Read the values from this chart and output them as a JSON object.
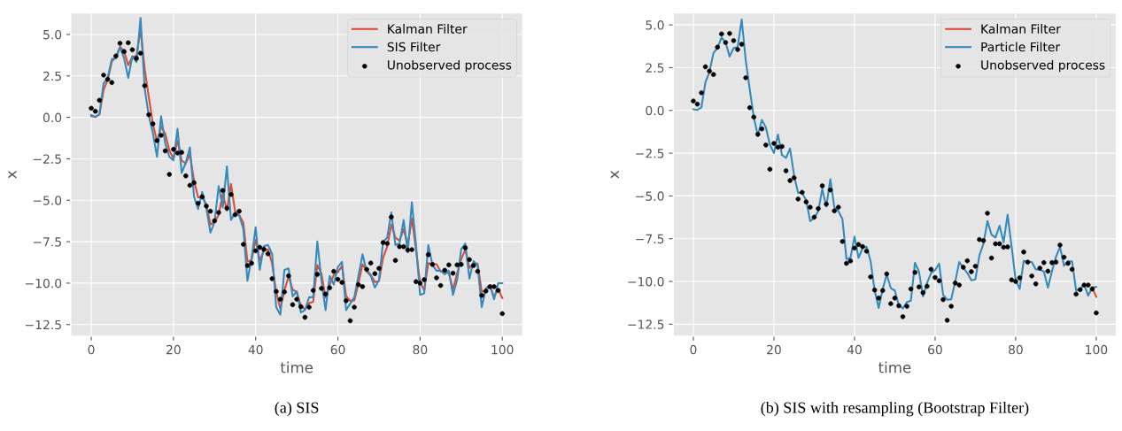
{
  "chart_data": [
    {
      "type": "line",
      "title": "(a) SIS",
      "xlabel": "time",
      "ylabel": "x",
      "xlim": [
        -5,
        105
      ],
      "ylim": [
        -13.2,
        6.3
      ],
      "xticks": [
        0,
        20,
        40,
        60,
        80,
        100
      ],
      "yticks": [
        {
          "value": 5,
          "label": "5.0"
        },
        {
          "value": 2.5,
          "label": "2.5"
        },
        {
          "value": 0,
          "label": "0.0"
        },
        {
          "value": -2.5,
          "label": "−2.5"
        },
        {
          "value": -5,
          "label": "−5.0"
        },
        {
          "value": -7.5,
          "label": "−7.5"
        },
        {
          "value": -10,
          "label": "−10.0"
        },
        {
          "value": -12.5,
          "label": "−12.5"
        }
      ],
      "grid": true,
      "legend": "top right",
      "x": [
        0,
        1,
        2,
        3,
        4,
        5,
        6,
        7,
        8,
        9,
        10,
        11,
        12,
        13,
        14,
        15,
        16,
        17,
        18,
        19,
        20,
        21,
        22,
        23,
        24,
        25,
        26,
        27,
        28,
        29,
        30,
        31,
        32,
        33,
        34,
        35,
        36,
        37,
        38,
        39,
        40,
        41,
        42,
        43,
        44,
        45,
        46,
        47,
        48,
        49,
        50,
        51,
        52,
        53,
        54,
        55,
        56,
        57,
        58,
        59,
        60,
        61,
        62,
        63,
        64,
        65,
        66,
        67,
        68,
        69,
        70,
        71,
        72,
        73,
        74,
        75,
        76,
        77,
        78,
        79,
        80,
        81,
        82,
        83,
        84,
        85,
        86,
        87,
        88,
        89,
        90,
        91,
        92,
        93,
        94,
        95,
        96,
        97,
        98,
        99,
        100
      ],
      "series": [
        {
          "name": "Kalman Filter",
          "type": "line",
          "color": "#e24a33",
          "values": [
            0.07,
            0.03,
            0.17,
            1.65,
            2.25,
            3.36,
            3.65,
            4.26,
            3.99,
            3.15,
            3.65,
            3.7,
            5.31,
            2.93,
            1.23,
            -0.39,
            -1.47,
            -0.56,
            -0.99,
            -2.0,
            -2.49,
            -1.41,
            -2.61,
            -2.78,
            -2.23,
            -3.8,
            -4.82,
            -4.82,
            -5.25,
            -6.47,
            -6.3,
            -5.89,
            -4.6,
            -5.62,
            -4.02,
            -5.67,
            -5.89,
            -6.35,
            -8.69,
            -8.62,
            -7.38,
            -8.62,
            -8.06,
            -7.97,
            -8.82,
            -10.53,
            -11.55,
            -10.44,
            -9.6,
            -10.39,
            -10.53,
            -11.38,
            -11.58,
            -11.21,
            -11.12,
            -8.91,
            -9.42,
            -10.87,
            -10.1,
            -9.51,
            -9.34,
            -8.96,
            -10.78,
            -11.07,
            -11.04,
            -10.02,
            -8.86,
            -9.2,
            -9.51,
            -9.93,
            -9.88,
            -8.48,
            -7.8,
            -6.47,
            -7.26,
            -7.43,
            -6.74,
            -7.71,
            -6.1,
            -7.97,
            -9.93,
            -10.44,
            -8.79,
            -8.86,
            -8.86,
            -9.3,
            -9.3,
            -9.42,
            -10.36,
            -9.42,
            -8.57,
            -7.97,
            -9.08,
            -8.82,
            -8.82,
            -10.53,
            -10.44,
            -10.19,
            -10.83,
            -10.36,
            -10.9
          ]
        },
        {
          "name": "SIS Filter",
          "type": "line",
          "color": "#348abd",
          "values": [
            0.14,
            0.02,
            0.2,
            2.06,
            2.38,
            3.51,
            3.56,
            4.22,
            3.56,
            2.38,
            3.69,
            3.33,
            5.99,
            1.74,
            0.11,
            -0.96,
            -2.38,
            0.07,
            -1.58,
            -2.38,
            -2.59,
            -0.69,
            -3.35,
            -2.73,
            -1.81,
            -4.77,
            -5.53,
            -4.5,
            -5.48,
            -6.95,
            -6.31,
            -4.15,
            -5.43,
            -2.96,
            -6.19,
            -5.74,
            -5.92,
            -6.72,
            -9.86,
            -8.49,
            -6.63,
            -9.2,
            -7.78,
            -7.7,
            -8.23,
            -11.45,
            -11.91,
            -9.2,
            -9.11,
            -10.8,
            -10.5,
            -11.77,
            -11.63,
            -10.85,
            -10.85,
            -7.48,
            -9.82,
            -11.63,
            -9.56,
            -10.09,
            -9.02,
            -8.72,
            -11.63,
            -11.24,
            -10.85,
            -9.56,
            -8.26,
            -9.29,
            -9.56,
            -10.27,
            -9.82,
            -7.52,
            -7.25,
            -5.74,
            -7.7,
            -7.61,
            -6.19,
            -8.14,
            -5.12,
            -7.7,
            -10.71,
            -10.62,
            -7.7,
            -8.9,
            -9.25,
            -9.25,
            -9.47,
            -9.25,
            -10.71,
            -9.82,
            -7.96,
            -7.61,
            -9.73,
            -8.67,
            -8.94,
            -11.45,
            -10.32,
            -10.14,
            -10.97,
            -10.0,
            -10.0
          ]
        },
        {
          "name": "Unobserved process",
          "type": "scatter",
          "marker": "circle",
          "color": "#000000",
          "values": [
            0.55,
            0.37,
            1.03,
            2.55,
            2.3,
            2.1,
            3.7,
            4.47,
            3.97,
            4.5,
            4.08,
            3.56,
            3.87,
            1.91,
            0.16,
            -0.39,
            -1.4,
            -1.08,
            -2.02,
            -3.44,
            -1.93,
            -2.15,
            -2.11,
            -3.53,
            -4.1,
            -3.94,
            -5.18,
            -4.79,
            -5.35,
            -5.66,
            -6.24,
            -5.74,
            -4.41,
            -5.48,
            -4.65,
            -5.87,
            -5.66,
            -7.66,
            -8.94,
            -8.8,
            -8.05,
            -7.84,
            -7.96,
            -8.23,
            -9.73,
            -10.5,
            -10.97,
            -10.53,
            -9.56,
            -11.3,
            -10.97,
            -11.42,
            -12.06,
            -11.45,
            -10.44,
            -9.47,
            -10.32,
            -10.66,
            -10.28,
            -9.29,
            -9.77,
            -9.96,
            -11.06,
            -12.27,
            -11.45,
            -10.09,
            -10.21,
            -9.17,
            -8.79,
            -9.43,
            -9.11,
            -7.55,
            -7.61,
            -6.01,
            -8.63,
            -7.8,
            -7.8,
            -8.0,
            -7.98,
            -9.91,
            -10.0,
            -9.79,
            -8.28,
            -8.87,
            -9.68,
            -10.14,
            -9.22,
            -8.9,
            -9.4,
            -8.9,
            -8.87,
            -7.87,
            -8.58,
            -8.94,
            -9.29,
            -10.74,
            -10.48,
            -10.21,
            -10.21,
            -10.44,
            -11.84
          ]
        }
      ]
    },
    {
      "type": "line",
      "title": "(b) SIS with resampling (Bootstrap Filter)",
      "xlabel": "time",
      "ylabel": "x",
      "xlim": [
        -5,
        105
      ],
      "ylim": [
        -13.2,
        5.7
      ],
      "xticks": [
        0,
        20,
        40,
        60,
        80,
        100
      ],
      "yticks": [
        {
          "value": 5,
          "label": "5.0"
        },
        {
          "value": 2.5,
          "label": "2.5"
        },
        {
          "value": 0,
          "label": "0.0"
        },
        {
          "value": -2.5,
          "label": "−2.5"
        },
        {
          "value": -5,
          "label": "−5.0"
        },
        {
          "value": -7.5,
          "label": "−7.5"
        },
        {
          "value": -10,
          "label": "−10.0"
        },
        {
          "value": -12.5,
          "label": "−12.5"
        }
      ],
      "grid": true,
      "legend": "top right",
      "x": [
        0,
        1,
        2,
        3,
        4,
        5,
        6,
        7,
        8,
        9,
        10,
        11,
        12,
        13,
        14,
        15,
        16,
        17,
        18,
        19,
        20,
        21,
        22,
        23,
        24,
        25,
        26,
        27,
        28,
        29,
        30,
        31,
        32,
        33,
        34,
        35,
        36,
        37,
        38,
        39,
        40,
        41,
        42,
        43,
        44,
        45,
        46,
        47,
        48,
        49,
        50,
        51,
        52,
        53,
        54,
        55,
        56,
        57,
        58,
        59,
        60,
        61,
        62,
        63,
        64,
        65,
        66,
        67,
        68,
        69,
        70,
        71,
        72,
        73,
        74,
        75,
        76,
        77,
        78,
        79,
        80,
        81,
        82,
        83,
        84,
        85,
        86,
        87,
        88,
        89,
        90,
        91,
        92,
        93,
        94,
        95,
        96,
        97,
        98,
        99,
        100
      ],
      "series": [
        {
          "name": "Kalman Filter",
          "type": "line",
          "color": "#e24a33",
          "values": [
            null,
            null,
            null,
            null,
            null,
            null,
            null,
            null,
            null,
            null,
            null,
            null,
            null,
            null,
            null,
            null,
            null,
            null,
            null,
            null,
            null,
            null,
            null,
            null,
            null,
            null,
            null,
            null,
            null,
            null,
            null,
            null,
            null,
            null,
            null,
            null,
            null,
            null,
            null,
            null,
            null,
            null,
            null,
            null,
            null,
            null,
            null,
            null,
            null,
            null,
            null,
            null,
            null,
            null,
            null,
            null,
            null,
            null,
            null,
            null,
            null,
            null,
            null,
            null,
            null,
            null,
            null,
            null,
            null,
            null,
            null,
            null,
            null,
            null,
            null,
            null,
            null,
            null,
            null,
            null,
            null,
            null,
            null,
            null,
            null,
            null,
            null,
            null,
            null,
            null,
            null,
            null,
            null,
            null,
            null,
            null,
            null,
            null,
            null,
            -10.36,
            -10.9
          ]
        },
        {
          "name": "Particle Filter",
          "type": "line",
          "color": "#348abd",
          "values": [
            0.07,
            0.03,
            0.17,
            1.65,
            2.25,
            3.36,
            3.65,
            4.26,
            3.99,
            3.15,
            3.65,
            3.7,
            5.31,
            2.93,
            1.23,
            -0.39,
            -1.47,
            -0.56,
            -0.99,
            -2.0,
            -2.49,
            -1.41,
            -2.61,
            -2.78,
            -2.23,
            -3.8,
            -4.82,
            -4.82,
            -5.25,
            -6.47,
            -6.3,
            -5.89,
            -4.6,
            -5.62,
            -4.02,
            -5.67,
            -5.89,
            -6.35,
            -8.69,
            -8.62,
            -7.38,
            -8.62,
            -8.06,
            -7.97,
            -8.82,
            -10.53,
            -11.55,
            -10.44,
            -9.6,
            -10.39,
            -10.53,
            -11.38,
            -11.58,
            -11.21,
            -11.12,
            -8.91,
            -9.42,
            -10.87,
            -10.1,
            -9.51,
            -9.34,
            -8.96,
            -10.78,
            -11.07,
            -11.04,
            -10.02,
            -8.86,
            -9.2,
            -9.51,
            -9.93,
            -9.88,
            -8.48,
            -7.8,
            -6.47,
            -7.26,
            -7.43,
            -6.74,
            -7.71,
            -6.1,
            -7.97,
            -9.93,
            -10.44,
            -8.79,
            -8.86,
            -8.86,
            -9.3,
            -9.3,
            -9.42,
            -10.36,
            -9.42,
            -8.57,
            -7.97,
            -9.08,
            -8.82,
            -8.82,
            -10.53,
            -10.44,
            -10.19,
            -10.83,
            -10.36,
            -10.32
          ]
        },
        {
          "name": "Unobserved process",
          "type": "scatter",
          "marker": "circle",
          "color": "#000000",
          "values": [
            0.55,
            0.37,
            1.03,
            2.55,
            2.3,
            2.1,
            3.7,
            4.47,
            3.97,
            4.5,
            4.08,
            3.56,
            3.87,
            1.91,
            0.16,
            -0.39,
            -1.4,
            -1.08,
            -2.02,
            -3.44,
            -1.93,
            -2.15,
            -2.11,
            -3.53,
            -4.1,
            -3.94,
            -5.18,
            -4.79,
            -5.35,
            -5.66,
            -6.24,
            -5.74,
            -4.41,
            -5.48,
            -4.65,
            -5.87,
            -5.66,
            -7.66,
            -8.94,
            -8.8,
            -8.05,
            -7.84,
            -7.96,
            -8.23,
            -9.73,
            -10.5,
            -10.97,
            -10.53,
            -9.56,
            -11.3,
            -10.97,
            -11.42,
            -12.06,
            -11.45,
            -10.44,
            -9.47,
            -10.32,
            -10.66,
            -10.28,
            -9.29,
            -9.77,
            -9.96,
            -11.06,
            -12.27,
            -11.45,
            -10.09,
            -10.21,
            -9.17,
            -8.79,
            -9.43,
            -9.11,
            -7.55,
            -7.61,
            -6.01,
            -8.63,
            -7.8,
            -7.8,
            -8.0,
            -7.98,
            -9.91,
            -10.0,
            -9.79,
            -8.28,
            -8.87,
            -9.68,
            -10.14,
            -9.22,
            -8.9,
            -9.4,
            -8.9,
            -8.87,
            -7.87,
            -8.58,
            -8.94,
            -9.29,
            -10.74,
            -10.48,
            -10.21,
            -10.21,
            -10.44,
            -11.84
          ]
        }
      ]
    }
  ]
}
